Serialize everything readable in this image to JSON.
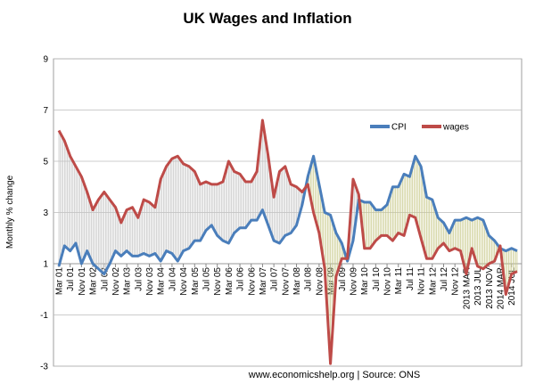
{
  "chart_data": {
    "type": "line",
    "title": "UK Wages and Inflation",
    "y_label": "Monthly % change",
    "footer": "www.economicshelp.org | Source: ONS",
    "categories": [
      "Mar 01",
      null,
      "Jul 01",
      null,
      "Nov 01",
      null,
      "Mar 02",
      null,
      "Jul 02",
      null,
      "Nov 02",
      null,
      "Mar 03",
      null,
      "Jul 03",
      null,
      "Nov 03",
      null,
      "Mar 04",
      null,
      "Jul 04",
      null,
      "Nov 04",
      null,
      "Mar 05",
      null,
      "Jul 05",
      null,
      "Nov 05",
      null,
      "Mar 06",
      null,
      "Jul 06",
      null,
      "Nov 06",
      null,
      "Mar 07",
      null,
      "Jul 07",
      null,
      "Nov 07",
      null,
      "Mar 08",
      null,
      "Jul 08",
      null,
      "Nov 08",
      null,
      "Mar 09",
      null,
      "Jul 09",
      null,
      "Nov 09",
      null,
      "Mar 10",
      null,
      "Jul 10",
      null,
      "Nov 10",
      null,
      "Mar 11",
      null,
      "Jul 11",
      null,
      "Nov 11",
      null,
      "Mar 12",
      null,
      "Jul 12",
      null,
      "Nov 12",
      null,
      "2013 MAR",
      null,
      "2013 JUL",
      null,
      "2013 NOV",
      null,
      "2014 MAR",
      null,
      "2014 JUL",
      null
    ],
    "series": [
      {
        "name": "CPI",
        "color": "#4a7ebb",
        "values": [
          0.9,
          1.7,
          1.5,
          1.8,
          1.0,
          1.5,
          1.0,
          0.8,
          0.6,
          1.0,
          1.5,
          1.3,
          1.5,
          1.3,
          1.3,
          1.4,
          1.3,
          1.4,
          1.1,
          1.5,
          1.4,
          1.1,
          1.5,
          1.6,
          1.9,
          1.9,
          2.3,
          2.5,
          2.1,
          1.9,
          1.8,
          2.2,
          2.4,
          2.4,
          2.7,
          2.7,
          3.1,
          2.5,
          1.9,
          1.8,
          2.1,
          2.2,
          2.5,
          3.3,
          4.4,
          5.2,
          4.1,
          3.0,
          2.9,
          2.2,
          1.8,
          1.1,
          1.9,
          3.5,
          3.4,
          3.4,
          3.1,
          3.1,
          3.3,
          4.0,
          4.0,
          4.5,
          4.4,
          5.2,
          4.8,
          3.6,
          3.5,
          2.8,
          2.6,
          2.2,
          2.7,
          2.7,
          2.8,
          2.7,
          2.8,
          2.7,
          2.1,
          1.9,
          1.6,
          1.5,
          1.6,
          1.5
        ]
      },
      {
        "name": "wages",
        "color": "#be4b48",
        "values": [
          6.2,
          5.8,
          5.2,
          4.8,
          4.4,
          3.8,
          3.1,
          3.5,
          3.8,
          3.5,
          3.2,
          2.6,
          3.1,
          3.2,
          2.8,
          3.5,
          3.4,
          3.2,
          4.3,
          4.8,
          5.1,
          5.2,
          4.9,
          4.8,
          4.6,
          4.1,
          4.2,
          4.1,
          4.1,
          4.2,
          5.0,
          4.6,
          4.5,
          4.2,
          4.2,
          4.6,
          6.6,
          5.2,
          3.6,
          4.6,
          4.8,
          4.1,
          4.0,
          3.8,
          4.1,
          3.0,
          2.2,
          0.8,
          -2.9,
          0.5,
          1.2,
          1.2,
          4.3,
          3.7,
          1.6,
          1.6,
          1.9,
          2.1,
          2.1,
          1.9,
          2.2,
          2.1,
          2.9,
          2.8,
          2.0,
          1.2,
          1.2,
          1.6,
          1.8,
          1.5,
          1.6,
          1.5,
          0.6,
          1.6,
          0.9,
          0.8,
          1.0,
          1.1,
          1.7,
          -0.2,
          0.6,
          0.7
        ]
      }
    ],
    "ylim": [
      -3,
      9
    ],
    "yticks": [
      -3,
      -1,
      1,
      3,
      5,
      7,
      9
    ],
    "x_axis_crossing": 1,
    "grid": true,
    "fill_between": true
  }
}
